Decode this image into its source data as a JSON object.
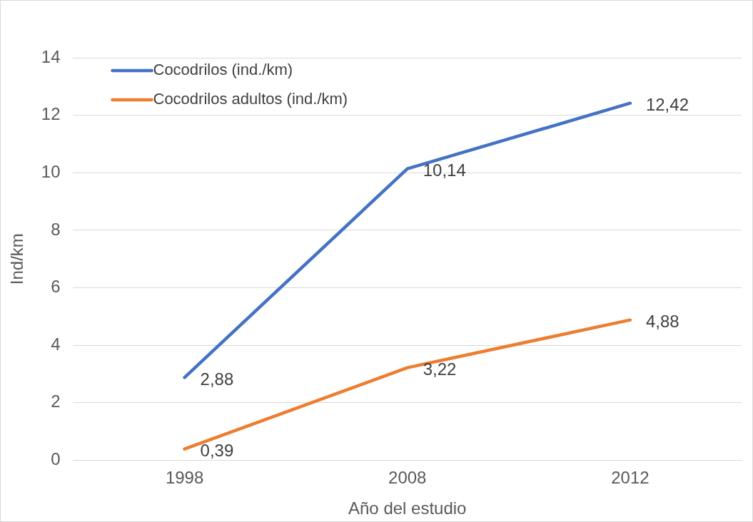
{
  "chart_data": {
    "type": "line",
    "xlabel": "Año del estudio",
    "ylabel": "Ind/km",
    "categories": [
      "1998",
      "2008",
      "2012"
    ],
    "series": [
      {
        "name": "Cocodrilos (ind./km)",
        "color": "#4472c4",
        "values": [
          2.88,
          10.14,
          12.42
        ],
        "value_labels": [
          "2,88",
          "10,14",
          "12,42"
        ]
      },
      {
        "name": "Cocodrilos adultos (ind./km)",
        "color": "#ed7d31",
        "values": [
          0.39,
          3.22,
          4.88
        ],
        "value_labels": [
          "0,39",
          "3,22",
          "4,88"
        ]
      }
    ],
    "ylim": [
      0,
      14
    ],
    "yticks": [
      0,
      2,
      4,
      6,
      8,
      10,
      12,
      14
    ],
    "grid": "y",
    "legend": "top left",
    "marker": "none",
    "line_style": "solid"
  }
}
